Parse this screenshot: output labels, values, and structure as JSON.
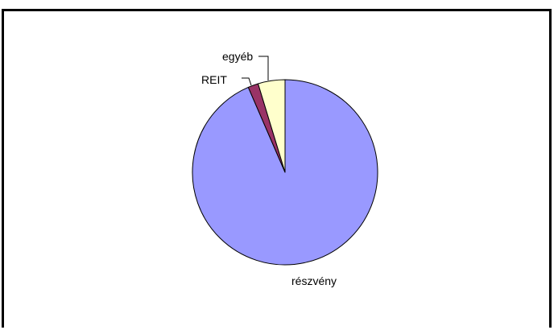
{
  "chart_data": {
    "type": "pie",
    "title": "",
    "slices": [
      {
        "label": "részvény",
        "value": 93.5,
        "color": "#9999FF"
      },
      {
        "label": "REIT",
        "value": 1.8,
        "color": "#993366"
      },
      {
        "label": "egyéb",
        "value": 4.7,
        "color": "#FFFFCC"
      }
    ],
    "start": "12 o'clock, clockwise",
    "legend": "none",
    "data_labels": "category names with leader lines"
  }
}
